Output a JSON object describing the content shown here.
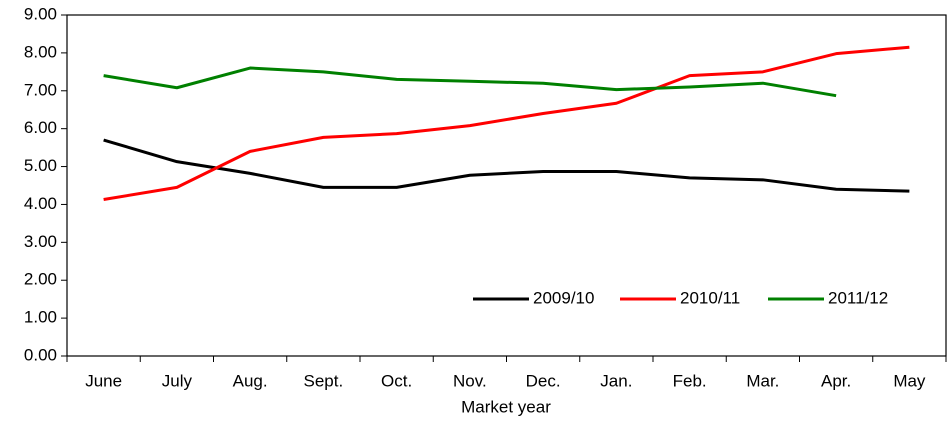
{
  "chart_data": {
    "type": "line",
    "x_label": "Market year",
    "categories": [
      "June",
      "July",
      "Aug.",
      "Sept.",
      "Oct.",
      "Nov.",
      "Dec.",
      "Jan.",
      "Feb.",
      "Mar.",
      "Apr.",
      "May"
    ],
    "series": [
      {
        "name": "2009/10",
        "color": "#000000",
        "values": [
          5.7,
          5.13,
          4.82,
          4.45,
          4.45,
          4.77,
          4.87,
          4.87,
          4.7,
          4.65,
          4.4,
          4.35
        ]
      },
      {
        "name": "2010/11",
        "color": "#ff0000",
        "values": [
          4.13,
          4.45,
          5.4,
          5.77,
          5.87,
          6.08,
          6.4,
          6.67,
          7.4,
          7.5,
          7.98,
          8.15
        ]
      },
      {
        "name": "2011/12",
        "color": "#008000",
        "values": [
          7.4,
          7.08,
          7.6,
          7.5,
          7.3,
          7.25,
          7.2,
          7.03,
          7.1,
          7.2,
          6.87,
          null
        ]
      }
    ],
    "ylim": [
      0,
      9
    ],
    "yticks": [
      {
        "value": 0,
        "label": "0.00"
      },
      {
        "value": 1,
        "label": "1.00"
      },
      {
        "value": 2,
        "label": "2.00"
      },
      {
        "value": 3,
        "label": "3.00"
      },
      {
        "value": 4,
        "label": "4.00"
      },
      {
        "value": 5,
        "label": "5.00"
      },
      {
        "value": 6,
        "label": "6.00"
      },
      {
        "value": 7,
        "label": "7.00"
      },
      {
        "value": 8,
        "label": "8.00"
      },
      {
        "value": 9,
        "label": "9.00"
      }
    ],
    "legend": "lower-right"
  }
}
